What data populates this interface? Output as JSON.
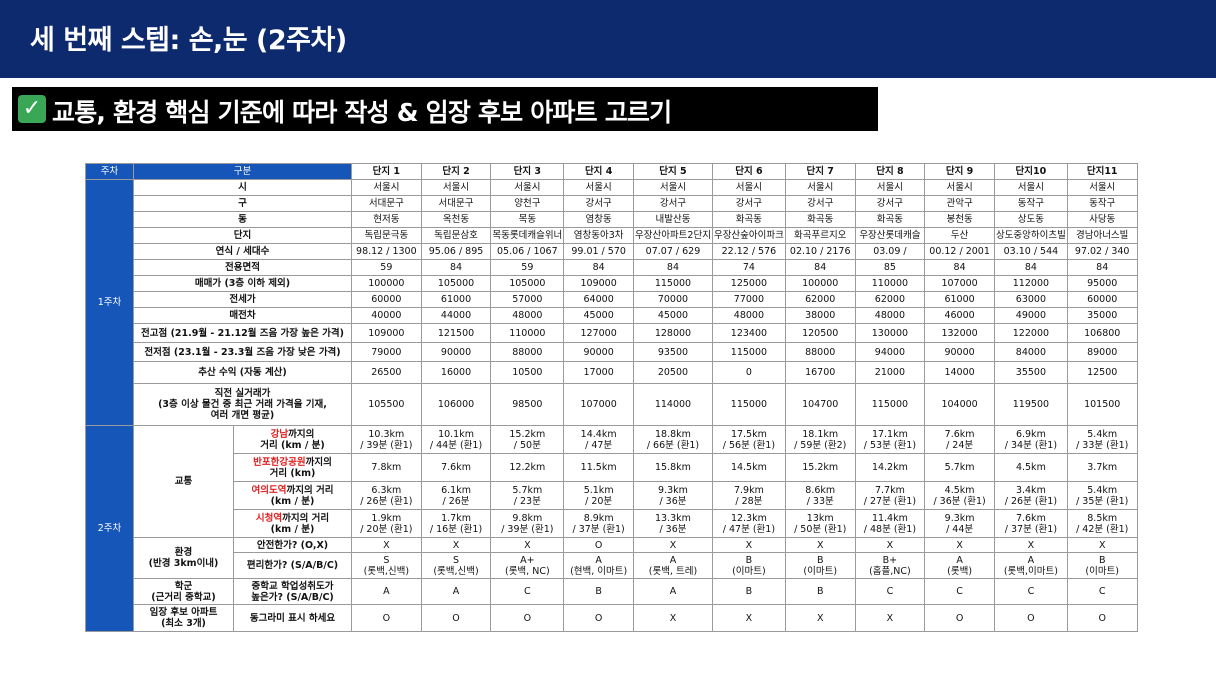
{
  "header": {
    "title": "세 번째 스텝: 손,눈 (2주차)"
  },
  "subheader": {
    "check_icon": "check-box-icon",
    "text": "교통, 환경 핵심 기준에 따라 작성 & 임장 후보 아파트 고르기"
  },
  "colors": {
    "banner": "#0e2a6e",
    "table_header": "#1556b8",
    "check": "#3aa757",
    "highlight_red": "#e02020"
  },
  "table": {
    "week_header": "주차",
    "category_header": "구분",
    "complexes": [
      "단지 1",
      "단지 2",
      "단지 3",
      "단지 4",
      "단지 5",
      "단지 6",
      "단지 7",
      "단지 8",
      "단지 9",
      "단지10",
      "단지11"
    ],
    "week1": "1주차",
    "week2": "2주차",
    "rows1": [
      {
        "label": "시",
        "values": [
          "서울시",
          "서울시",
          "서울시",
          "서울시",
          "서울시",
          "서울시",
          "서울시",
          "서울시",
          "서울시",
          "서울시",
          "서울시"
        ]
      },
      {
        "label": "구",
        "values": [
          "서대문구",
          "서대문구",
          "양천구",
          "강서구",
          "강서구",
          "강서구",
          "강서구",
          "강서구",
          "관악구",
          "동작구",
          "동작구"
        ]
      },
      {
        "label": "동",
        "values": [
          "현저동",
          "옥천동",
          "목동",
          "염창동",
          "내발산동",
          "화곡동",
          "화곡동",
          "화곡동",
          "봉천동",
          "상도동",
          "사당동"
        ]
      },
      {
        "label": "단지",
        "values": [
          "독립문극동",
          "독립문삼호",
          "목동롯데캐슬위너",
          "염창동아3차",
          "우장산아파트2단지",
          "우장산숲아이파크",
          "화곡푸르지오",
          "우장산롯데캐슬",
          "두산",
          "상도중앙하이츠빌",
          "경남아너스빌"
        ]
      },
      {
        "label": "연식 / 세대수",
        "values": [
          "98.12 / 1300",
          "95.06 / 895",
          "05.06 / 1067",
          "99.01 / 570",
          "07.07 / 629",
          "22.12 / 576",
          "02.10 / 2176",
          "03.09 /",
          "00.12 / 2001",
          "03.10 / 544",
          "97.02 / 340"
        ]
      },
      {
        "label": "전용면적",
        "values": [
          "59",
          "84",
          "59",
          "84",
          "84",
          "74",
          "84",
          "85",
          "84",
          "84",
          "84"
        ]
      },
      {
        "label": "매매가 (3층 이하 제외)",
        "values": [
          "100000",
          "105000",
          "105000",
          "109000",
          "115000",
          "125000",
          "100000",
          "110000",
          "107000",
          "112000",
          "95000"
        ]
      },
      {
        "label": "전세가",
        "values": [
          "60000",
          "61000",
          "57000",
          "64000",
          "70000",
          "77000",
          "62000",
          "62000",
          "61000",
          "63000",
          "60000"
        ]
      },
      {
        "label": "매전차",
        "values": [
          "40000",
          "44000",
          "48000",
          "45000",
          "45000",
          "48000",
          "38000",
          "48000",
          "46000",
          "49000",
          "35000"
        ]
      },
      {
        "label": "전고점 (21.9월 - 21.12월 즈음 가장 높은 가격)",
        "values": [
          "109000",
          "121500",
          "110000",
          "127000",
          "128000",
          "123400",
          "120500",
          "130000",
          "132000",
          "122000",
          "106800"
        ]
      },
      {
        "label": "전저점 (23.1월 - 23.3월 즈음 가장 낮은 가격)",
        "values": [
          "79000",
          "90000",
          "88000",
          "90000",
          "93500",
          "115000",
          "88000",
          "94000",
          "90000",
          "84000",
          "89000"
        ]
      },
      {
        "label": "추산 수익 (자동 계산)",
        "values": [
          "26500",
          "16000",
          "10500",
          "17000",
          "20500",
          "0",
          "16700",
          "21000",
          "14000",
          "35500",
          "12500"
        ]
      }
    ],
    "recent_deal": {
      "label_line1": "직전 실거래가",
      "label_line2": "(3층 이상 물건 중 최근 거래 가격을 기재,",
      "label_line3": "여러 개면 평균)",
      "values": [
        "105500",
        "106000",
        "98500",
        "107000",
        "114000",
        "115000",
        "104700",
        "115000",
        "104000",
        "119500",
        "101500"
      ]
    },
    "transport": {
      "group": "교통",
      "rows": [
        {
          "red": "강남",
          "rest1": "까지의",
          "line2": "거리 (km / 분)",
          "values": [
            [
              "10.3km",
              "/ 39분 (환1)"
            ],
            [
              "10.1km",
              "/ 44분 (환1)"
            ],
            [
              "15.2km",
              "/ 50분"
            ],
            [
              "14.4km",
              "/ 47분"
            ],
            [
              "18.8km",
              "/ 66분 (환1)"
            ],
            [
              "17.5km",
              "/ 56분 (환1)"
            ],
            [
              "18.1km",
              "/ 59분 (환2)"
            ],
            [
              "17.1km",
              "/ 53분 (환1)"
            ],
            [
              "7.6km",
              "/ 24분"
            ],
            [
              "6.9km",
              "/ 34분 (환1)"
            ],
            [
              "5.4km",
              "/ 33분 (환1)"
            ]
          ]
        },
        {
          "red": "반포한강공원",
          "rest1": "까지의",
          "line2": "거리 (km)",
          "values": [
            [
              "7.8km",
              ""
            ],
            [
              "7.6km",
              ""
            ],
            [
              "12.2km",
              ""
            ],
            [
              "11.5km",
              ""
            ],
            [
              "15.8km",
              ""
            ],
            [
              "14.5km",
              ""
            ],
            [
              "15.2km",
              ""
            ],
            [
              "14.2km",
              ""
            ],
            [
              "5.7km",
              ""
            ],
            [
              "4.5km",
              ""
            ],
            [
              "3.7km",
              ""
            ]
          ]
        },
        {
          "red": "여의도역",
          "rest1": "까지의 거리",
          "line2": "(km / 분)",
          "values": [
            [
              "6.3km",
              "/ 26분 (환1)"
            ],
            [
              "6.1km",
              "/ 26분"
            ],
            [
              "5.7km",
              "/ 23분"
            ],
            [
              "5.1km",
              "/ 20분"
            ],
            [
              "9.3km",
              "/ 36분"
            ],
            [
              "7.9km",
              "/ 28분"
            ],
            [
              "8.6km",
              "/ 33분"
            ],
            [
              "7.7km",
              "/ 27분 (환1)"
            ],
            [
              "4.5km",
              "/ 36분 (환1)"
            ],
            [
              "3.4km",
              "/ 26분 (환1)"
            ],
            [
              "5.4km",
              "/ 35분 (환1)"
            ]
          ]
        },
        {
          "red": "시청역",
          "rest1": "까지의 거리",
          "line2": "(km / 분)",
          "values": [
            [
              "1.9km",
              "/ 20분 (환1)"
            ],
            [
              "1.7km",
              "/ 16분 (환1)"
            ],
            [
              "9.8km",
              "/ 39분 (환1)"
            ],
            [
              "8.9km",
              "/ 37분 (환1)"
            ],
            [
              "13.3km",
              "/ 36분"
            ],
            [
              "12.3km",
              "/ 47분 (환1)"
            ],
            [
              "13km",
              "/ 50분 (환1)"
            ],
            [
              "11.4km",
              "/ 48분 (환1)"
            ],
            [
              "9.3km",
              "/ 44분"
            ],
            [
              "7.6km",
              "/ 37분 (환1)"
            ],
            [
              "8.5km",
              "/ 42분 (환1)"
            ]
          ]
        }
      ]
    },
    "environment": {
      "group_line1": "환경",
      "group_line2": "(반경 3km이내)",
      "safety": {
        "label": "안전한가? (O,X)",
        "values": [
          "X",
          "X",
          "X",
          "O",
          "X",
          "X",
          "X",
          "X",
          "X",
          "X",
          "X"
        ]
      },
      "convenience": {
        "label": "편리한가? (S/A/B/C)",
        "values": [
          [
            "S",
            "(롯백,신백)"
          ],
          [
            "S",
            "(롯백,신백)"
          ],
          [
            "A+",
            "(롯백, NC)"
          ],
          [
            "A",
            "(현백, 이마트)"
          ],
          [
            "A",
            "(롯백, 트레)"
          ],
          [
            "B",
            "(이마트)"
          ],
          [
            "B",
            "(이마트)"
          ],
          [
            "B+",
            "(홈플,NC)"
          ],
          [
            "A",
            "(롯백)"
          ],
          [
            "A",
            "(롯백,이마트)"
          ],
          [
            "B",
            "(이마트)"
          ]
        ]
      }
    },
    "school": {
      "group_line1": "학군",
      "group_line2": "(근거리 중학교)",
      "label_line1": "중학교 학업성취도가",
      "label_line2": "높은가? (S/A/B/C)",
      "values": [
        "A",
        "A",
        "C",
        "B",
        "A",
        "B",
        "B",
        "C",
        "C",
        "C",
        "C"
      ]
    },
    "candidate": {
      "group_line1": "임장 후보 아파트",
      "group_line2": "(최소 3개)",
      "label": "동그라미 표시 하세요",
      "values": [
        "O",
        "O",
        "O",
        "O",
        "X",
        "X",
        "X",
        "X",
        "O",
        "O",
        "O"
      ]
    }
  }
}
